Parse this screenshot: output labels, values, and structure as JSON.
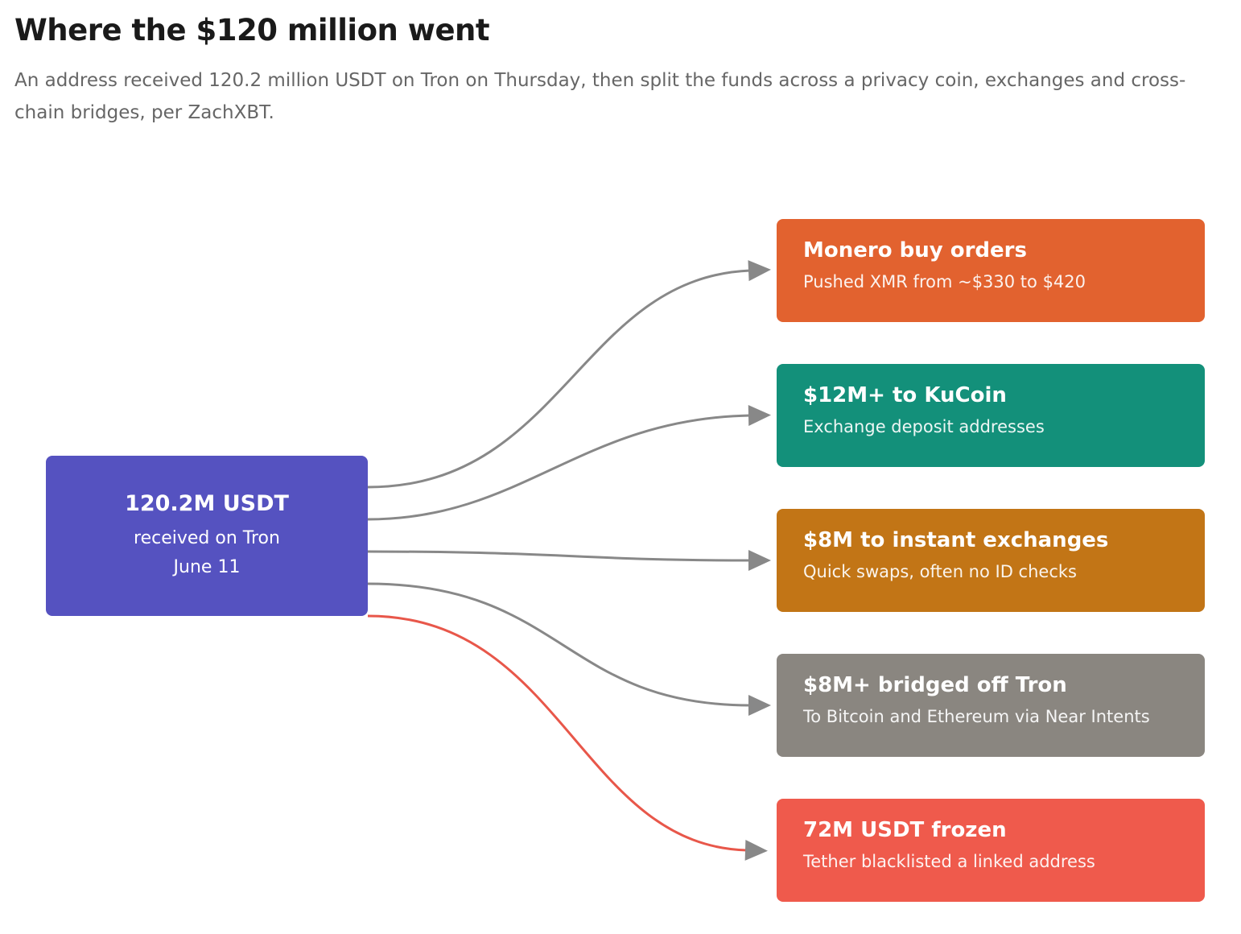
{
  "header": {
    "title": "Where the $120 million went",
    "subtitle": "An address received 120.2 million USDT on Tron on Thursday, then split the funds across a privacy coin, exchanges and cross-chain bridges, per ZachXBT."
  },
  "source": {
    "title": "120.2M USDT",
    "lines": [
      "received on Tron",
      "June 11"
    ]
  },
  "targets": [
    {
      "title": "Monero buy orders",
      "subtitle": "Pushed XMR from ~$330 to $420"
    },
    {
      "title": "$12M+ to KuCoin",
      "subtitle": "Exchange deposit addresses"
    },
    {
      "title": "$8M to instant exchanges",
      "subtitle": "Quick swaps, often no ID checks"
    },
    {
      "title": "$8M+ bridged off Tron",
      "subtitle": "To Bitcoin and Ethereum via Near Intents"
    },
    {
      "title": "72M USDT frozen",
      "subtitle": "Tether blacklisted a linked address"
    }
  ]
}
